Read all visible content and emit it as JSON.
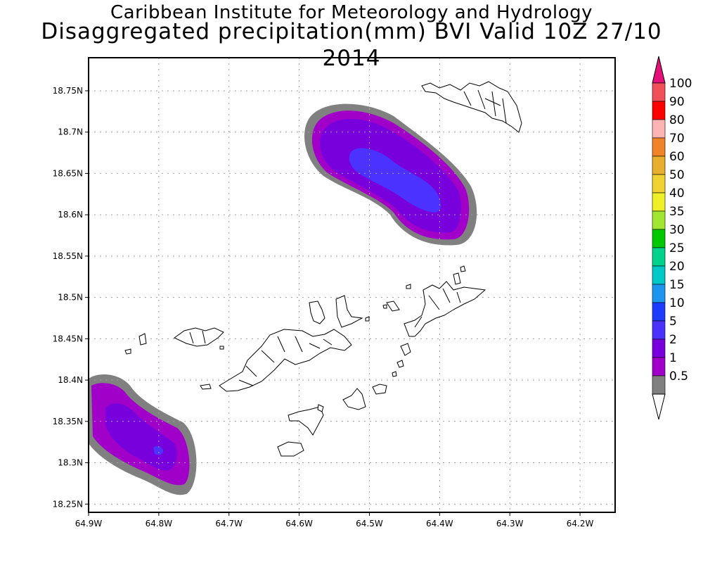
{
  "title": "Caribbean Institute for Meteorology and Hydrology",
  "subtitle": "Disaggregated precipitation(mm) BVI Valid 10Z 27/10 2014",
  "map": {
    "lon_ticks": [
      "64.9W",
      "64.8W",
      "64.7W",
      "64.6W",
      "64.5W",
      "64.4W",
      "64.3W",
      "64.2W"
    ],
    "lat_ticks": [
      "18.75N",
      "18.7N",
      "18.65N",
      "18.6N",
      "18.55N",
      "18.5N",
      "18.45N",
      "18.4N",
      "18.35N",
      "18.3N",
      "18.25N"
    ],
    "lon_range": [
      -64.9,
      -64.15
    ],
    "lat_range": [
      18.24,
      18.79
    ],
    "grid": "dotted"
  },
  "legend": {
    "levels": [
      "100",
      "90",
      "80",
      "70",
      "60",
      "50",
      "40",
      "35",
      "30",
      "25",
      "20",
      "15",
      "10",
      "5",
      "2",
      "1",
      "0.5"
    ],
    "colors": [
      "#f0505a",
      "#ff0000",
      "#ffb4b4",
      "#f08228",
      "#e6af2d",
      "#f0d232",
      "#f0f028",
      "#a0e632",
      "#00c800",
      "#00d28c",
      "#00c8c8",
      "#1e96f0",
      "#1e3cff",
      "#4b32ff",
      "#7800dc",
      "#a000c8",
      "#808080"
    ],
    "top_color": "#e6107a",
    "bottom_color": "#ffffff"
  },
  "precip_areas": [
    {
      "name": "north-cell",
      "levels": [
        "1",
        "2",
        "5"
      ]
    },
    {
      "name": "southwest-cell",
      "levels": [
        "1",
        "2",
        "5"
      ]
    }
  ]
}
